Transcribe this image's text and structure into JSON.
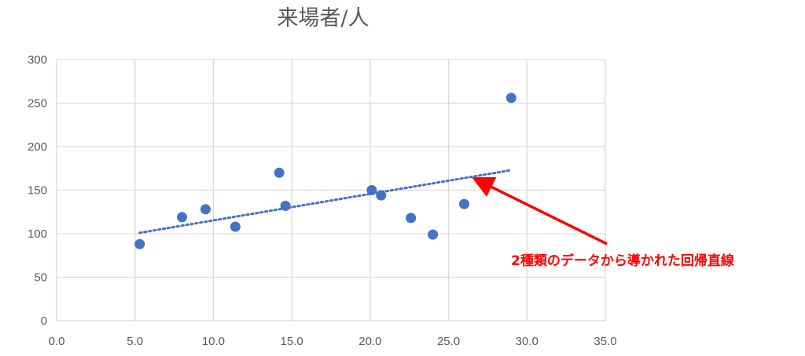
{
  "chart_data": {
    "type": "scatter",
    "title": "来場者/人",
    "xlabel": "",
    "ylabel": "",
    "xlim": [
      0,
      35
    ],
    "ylim": [
      0,
      300
    ],
    "x_ticks": [
      "0.0",
      "5.0",
      "10.0",
      "15.0",
      "20.0",
      "25.0",
      "30.0",
      "35.0"
    ],
    "y_ticks": [
      "0",
      "50",
      "100",
      "150",
      "200",
      "250",
      "300"
    ],
    "grid": true,
    "legend": "none",
    "series": [
      {
        "color": "#4472c4",
        "points": [
          {
            "x": 5.3,
            "y": 88
          },
          {
            "x": 8.0,
            "y": 119
          },
          {
            "x": 9.5,
            "y": 128
          },
          {
            "x": 11.4,
            "y": 108
          },
          {
            "x": 14.2,
            "y": 170
          },
          {
            "x": 14.6,
            "y": 132
          },
          {
            "x": 20.1,
            "y": 150
          },
          {
            "x": 20.7,
            "y": 144
          },
          {
            "x": 22.6,
            "y": 118
          },
          {
            "x": 24.0,
            "y": 99
          },
          {
            "x": 26.0,
            "y": 134
          },
          {
            "x": 29.0,
            "y": 256
          }
        ]
      }
    ],
    "trendline": {
      "type": "linear",
      "style": "dotted",
      "color": "#4472c4",
      "from": {
        "x": 5.3,
        "y": 101
      },
      "to": {
        "x": 29.0,
        "y": 173
      }
    },
    "annotation": {
      "text": "2種類のデータから導かれた回帰直線",
      "color": "#ff0000",
      "arrow_target": {
        "x": 26.8,
        "y": 162
      }
    }
  }
}
